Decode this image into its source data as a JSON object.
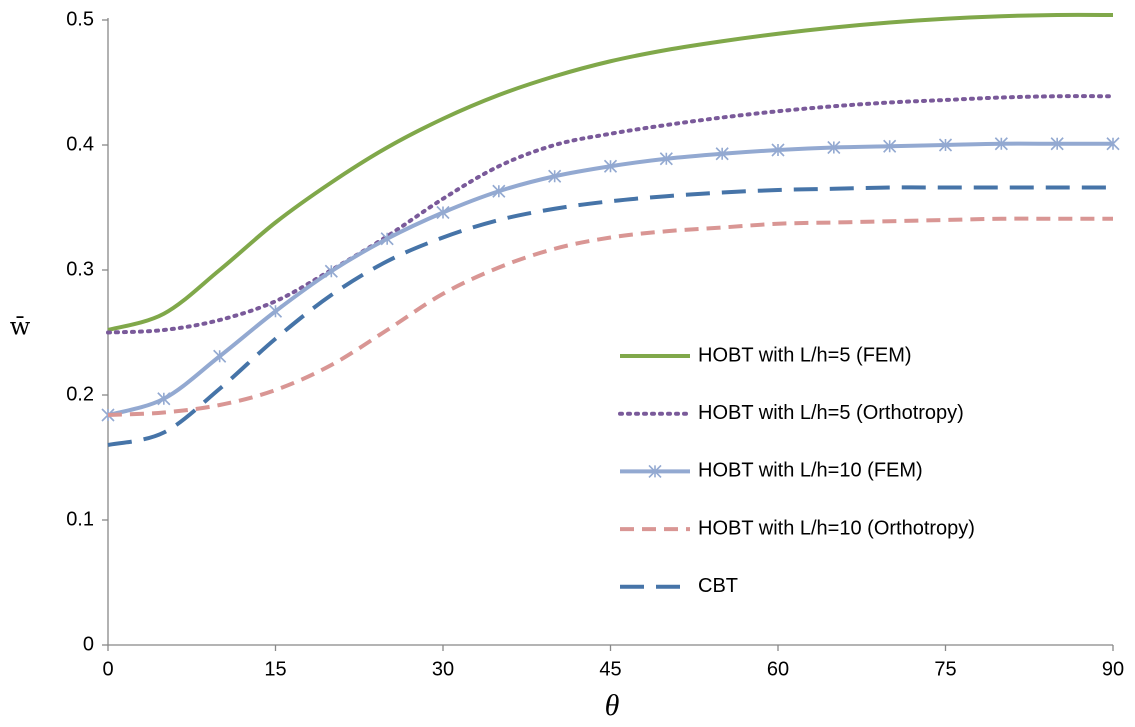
{
  "chart_data": {
    "type": "line",
    "x_label": "θ",
    "y_label": "w̄",
    "x": [
      0,
      5,
      10,
      15,
      20,
      25,
      30,
      35,
      40,
      45,
      50,
      55,
      60,
      65,
      70,
      75,
      80,
      85,
      90
    ],
    "series": [
      {
        "name": "HOBT with L/h=5 (FEM)",
        "color": "#80a84a",
        "line_style": "solid",
        "values": [
          0.252,
          0.265,
          0.3,
          0.338,
          0.37,
          0.398,
          0.421,
          0.44,
          0.455,
          0.467,
          0.476,
          0.483,
          0.489,
          0.494,
          0.498,
          0.501,
          0.503,
          0.504,
          0.504
        ]
      },
      {
        "name": "HOBT with L/h=5 (Orthotropy)",
        "color": "#7a5a9a",
        "line_style": "dotted",
        "values": [
          0.25,
          0.252,
          0.26,
          0.275,
          0.3,
          0.327,
          0.357,
          0.383,
          0.4,
          0.409,
          0.416,
          0.422,
          0.427,
          0.431,
          0.434,
          0.436,
          0.438,
          0.439,
          0.439
        ]
      },
      {
        "name": "HOBT with L/h=10 (FEM)",
        "color": "#93a9d1",
        "line_style": "solid",
        "marker": "asterisk",
        "values": [
          0.184,
          0.197,
          0.231,
          0.267,
          0.299,
          0.325,
          0.346,
          0.363,
          0.375,
          0.383,
          0.389,
          0.393,
          0.396,
          0.398,
          0.399,
          0.4,
          0.401,
          0.401,
          0.401
        ]
      },
      {
        "name": "HOBT with L/h=10 (Orthotropy)",
        "color": "#d99694",
        "line_style": "dashed",
        "values": [
          0.184,
          0.186,
          0.192,
          0.204,
          0.224,
          0.252,
          0.281,
          0.302,
          0.317,
          0.326,
          0.331,
          0.334,
          0.337,
          0.338,
          0.339,
          0.34,
          0.341,
          0.341,
          0.341
        ]
      },
      {
        "name": "CBT",
        "color": "#4674a8",
        "line_style": "long-dashed",
        "values": [
          0.16,
          0.17,
          0.205,
          0.245,
          0.28,
          0.307,
          0.326,
          0.34,
          0.349,
          0.355,
          0.359,
          0.362,
          0.364,
          0.365,
          0.366,
          0.366,
          0.366,
          0.366,
          0.366
        ]
      }
    ],
    "xlim": [
      0,
      90
    ],
    "xticks": [
      0,
      15,
      30,
      45,
      60,
      75,
      90
    ],
    "ylim": [
      0,
      0.5
    ],
    "yticks": [
      0,
      0.1,
      0.2,
      0.3,
      0.4,
      0.5
    ],
    "grid": false
  }
}
